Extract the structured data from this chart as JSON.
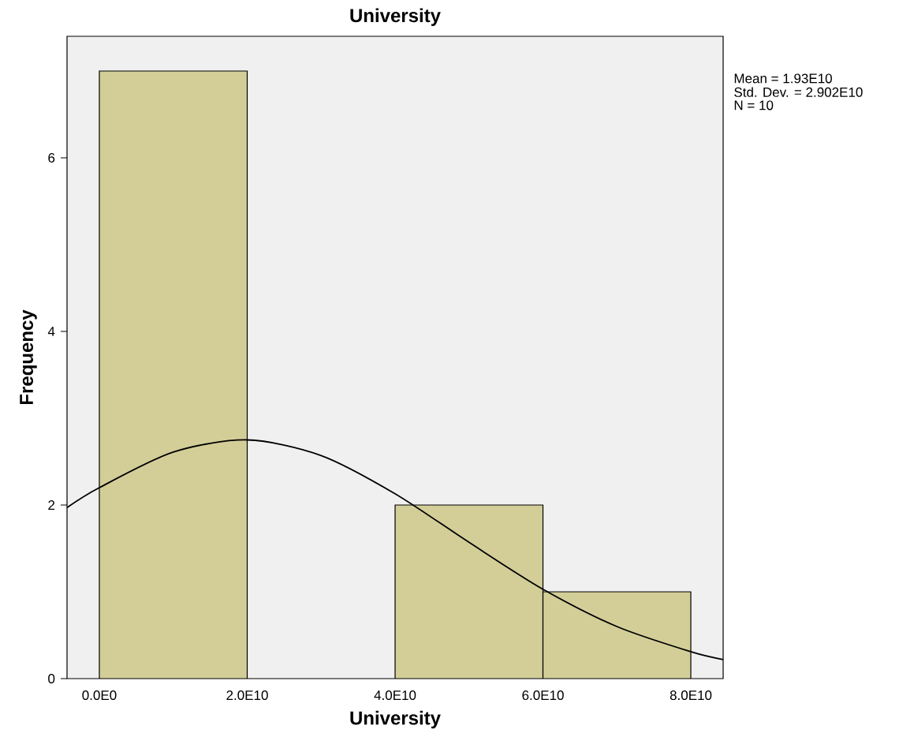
{
  "chart_data": {
    "type": "histogram",
    "title": "University",
    "xlabel": "University",
    "ylabel": "Frequency",
    "annotations": [
      "Mean = 1.93E10",
      "Std. Dev. = 2.902E10",
      "N = 10"
    ],
    "bins": [
      0,
      20000000000.0,
      40000000000.0,
      60000000000.0,
      80000000000.0
    ],
    "series": [
      {
        "type": "histogram",
        "color": "#d3ce97",
        "values": [
          7,
          0,
          2,
          1
        ]
      },
      {
        "type": "line",
        "color": "#000000",
        "x": [
          -4370000000.0,
          0,
          10000000000.0,
          20000000000.0,
          30000000000.0,
          40000000000.0,
          50000000000.0,
          60000000000.0,
          70000000000.0,
          80000000000.0,
          84370000000.0
        ],
        "values": [
          1.97,
          2.2,
          2.61,
          2.75,
          2.57,
          2.13,
          1.57,
          1.03,
          0.6,
          0.31,
          0.22
        ]
      }
    ],
    "xlim": [
      -4370000000.0,
      84370000000.0
    ],
    "ylim": [
      0,
      7.4
    ],
    "xticks": [
      {
        "value": 0,
        "label": "0.0E0"
      },
      {
        "value": 20000000000.0,
        "label": "2.0E10"
      },
      {
        "value": 40000000000.0,
        "label": "4.0E10"
      },
      {
        "value": 60000000000.0,
        "label": "6.0E10"
      },
      {
        "value": 80000000000.0,
        "label": "8.0E10"
      }
    ],
    "yticks": [
      0,
      2,
      4,
      6
    ],
    "grid": false,
    "marker": "none",
    "line_style": "solid"
  }
}
